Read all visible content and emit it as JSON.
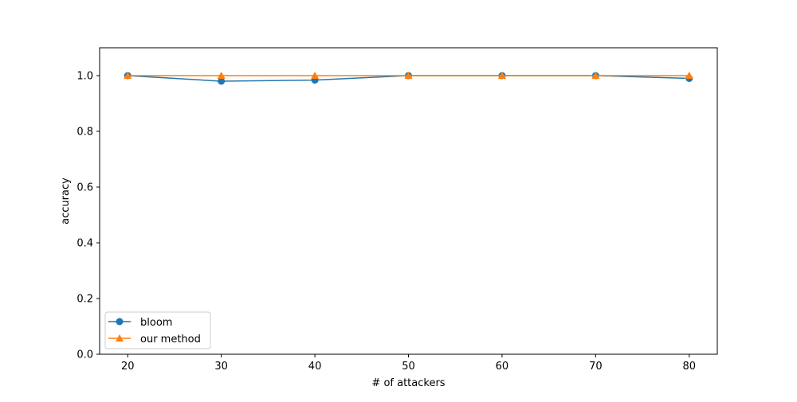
{
  "chart_data": {
    "type": "line",
    "title": "",
    "xlabel": "# of attackers",
    "ylabel": "accuracy",
    "x": [
      20,
      30,
      40,
      50,
      60,
      70,
      80
    ],
    "xticks": [
      "20",
      "30",
      "40",
      "50",
      "60",
      "70",
      "80"
    ],
    "yticks": [
      "0.0",
      "0.2",
      "0.4",
      "0.6",
      "0.8",
      "1.0"
    ],
    "xlim": [
      17,
      83
    ],
    "ylim": [
      0,
      1.1
    ],
    "grid": false,
    "legend_position": "lower-left",
    "series": [
      {
        "name": "bloom",
        "values": [
          1.0,
          0.98,
          0.984,
          1.0,
          1.0,
          1.0,
          0.99
        ],
        "color": "#1f77b4",
        "marker": "circle"
      },
      {
        "name": "our method",
        "values": [
          1.0,
          1.0,
          1.0,
          1.0,
          1.0,
          1.0,
          1.0
        ],
        "color": "#ff7f0e",
        "marker": "triangle"
      }
    ]
  }
}
